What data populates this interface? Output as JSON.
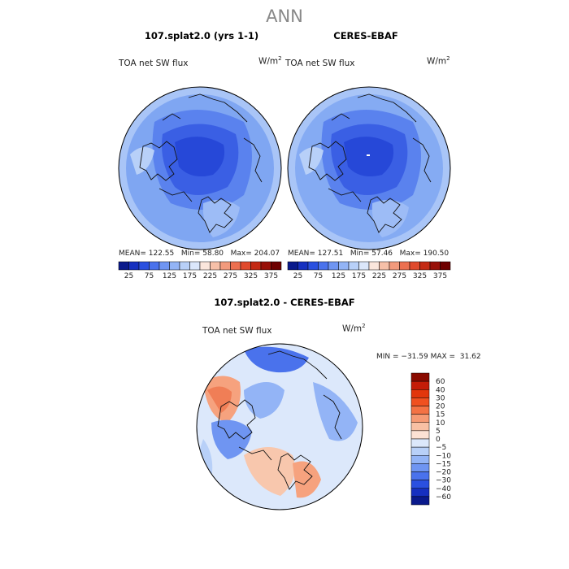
{
  "suptitle": "ANN",
  "panels": [
    {
      "title": "107.splat2.0 (yrs 1-1)",
      "variable": "TOA net SW flux",
      "units": "W/m",
      "units_exp": "2",
      "mean_label": "MEAN=",
      "mean": "122.55",
      "min_label": "Min=",
      "min": "58.80",
      "max_label": "Max=",
      "max": "204.07"
    },
    {
      "title": "CERES-EBAF",
      "variable": "TOA net SW flux",
      "units": "W/m",
      "units_exp": "2",
      "mean_label": "MEAN=",
      "mean": "127.51",
      "min_label": "Min=",
      "min": "57.46",
      "max_label": "Max=",
      "max": "190.50"
    }
  ],
  "diff_panel": {
    "title": "107.splat2.0 - CERES-EBAF",
    "variable": "TOA net SW flux",
    "units": "W/m",
    "units_exp": "2",
    "minmax": "MIN = −31.59 MAX =  31.62"
  },
  "abs_colorbar": {
    "labels": [
      "25",
      "75",
      "125",
      "175",
      "225",
      "275",
      "325",
      "375"
    ],
    "colors": [
      "#0a1a8c",
      "#1630c0",
      "#2a50e0",
      "#4a72ec",
      "#6f95f2",
      "#93b4f6",
      "#b8d0f8",
      "#dbe7fb",
      "#fbe6dc",
      "#f6c0a8",
      "#f29a7c",
      "#ec7050",
      "#e04a2c",
      "#c42a14",
      "#981008",
      "#6e0000"
    ]
  },
  "diff_colorbar": {
    "labels": [
      "60",
      "40",
      "30",
      "20",
      "15",
      "10",
      "5",
      "0",
      "−5",
      "−10",
      "−15",
      "−20",
      "−30",
      "−40",
      "−60"
    ],
    "colors": [
      "#8a0a00",
      "#c41c08",
      "#e2360c",
      "#f05020",
      "#f47244",
      "#f69a74",
      "#f8c0a4",
      "#fce2d4",
      "#dce8fb",
      "#b8d0f8",
      "#93b4f6",
      "#6f95f2",
      "#4a72ec",
      "#2a50e0",
      "#1630c0",
      "#0a1a8c"
    ]
  }
}
